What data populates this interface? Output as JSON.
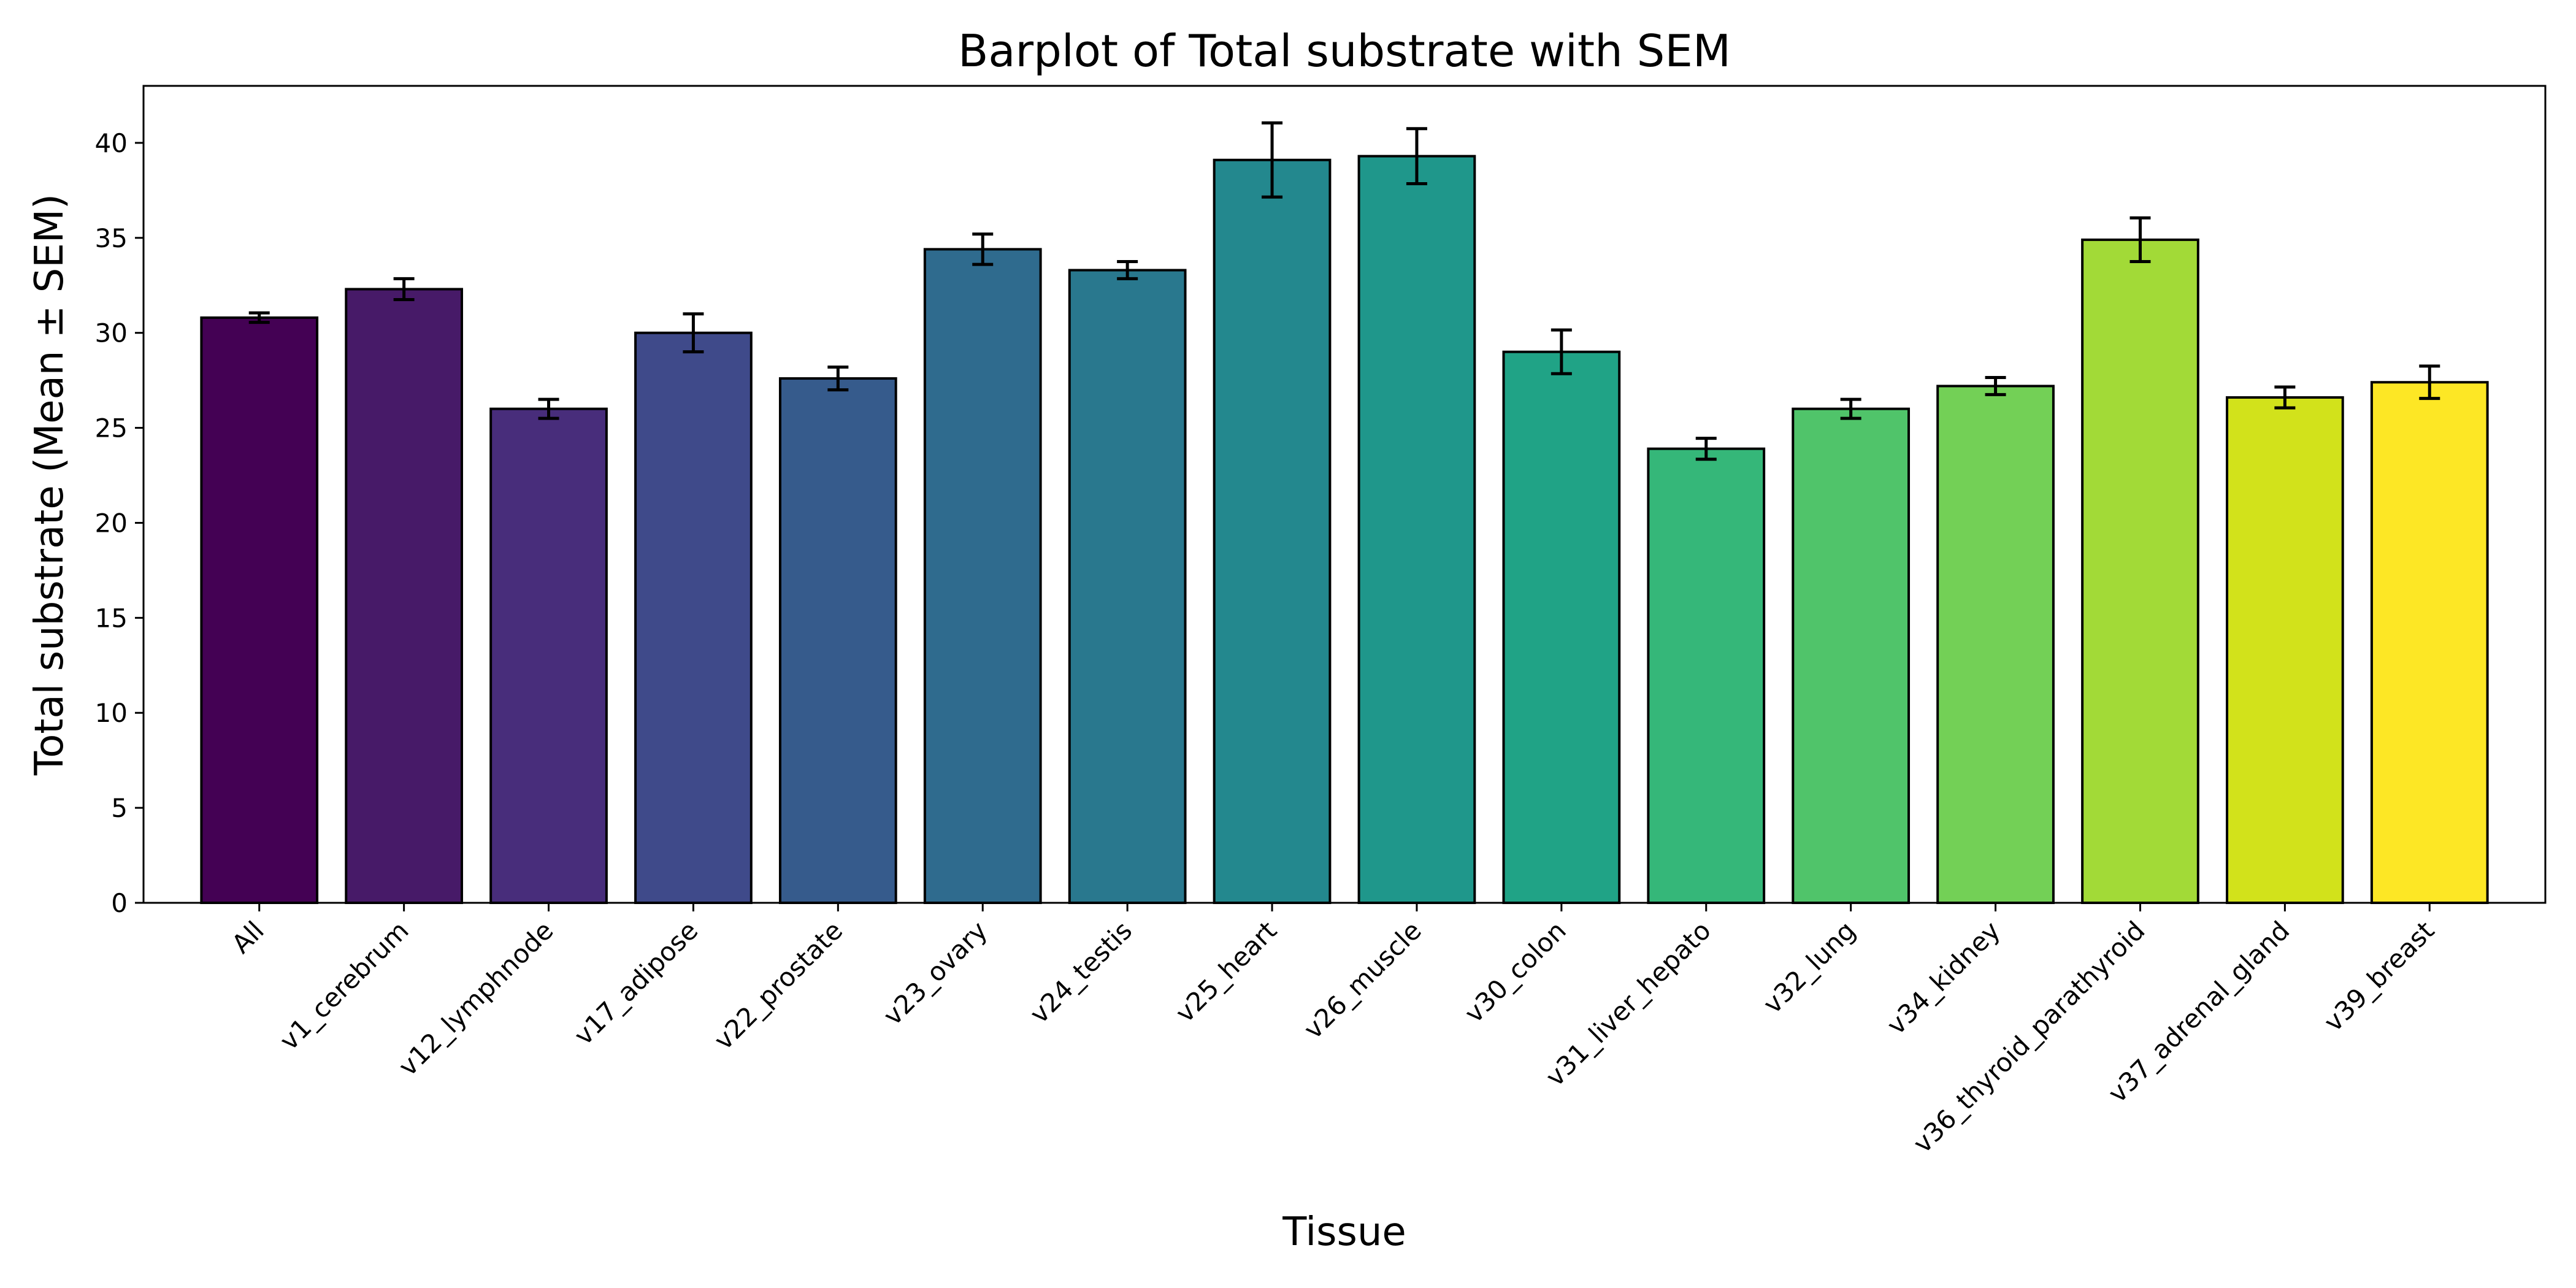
{
  "chart_data": {
    "type": "bar",
    "title": "Barplot of Total substrate with SEM",
    "xlabel": "Tissue",
    "ylabel": "Total substrate (Mean ± SEM)",
    "ylim": [
      0,
      43
    ],
    "yticks": [
      0,
      5,
      10,
      15,
      20,
      25,
      30,
      35,
      40
    ],
    "grid": false,
    "categories": [
      "All",
      "v1_cerebrum",
      "v12_lymphnode",
      "v17_adipose",
      "v22_prostate",
      "v23_ovary",
      "v24_testis",
      "v25_heart",
      "v26_muscle",
      "v30_colon",
      "v31_liver_hepato",
      "v32_lung",
      "v34_kidney",
      "v36_thyroid_parathyroid",
      "v37_adrenal_gland",
      "v39_breast"
    ],
    "values": [
      30.8,
      32.3,
      26.0,
      30.0,
      27.6,
      34.4,
      33.3,
      39.1,
      39.3,
      29.0,
      23.9,
      26.0,
      27.2,
      34.9,
      26.6,
      27.4
    ],
    "errors": [
      0.25,
      0.55,
      0.5,
      1.0,
      0.6,
      0.8,
      0.45,
      1.95,
      1.45,
      1.15,
      0.55,
      0.5,
      0.45,
      1.15,
      0.55,
      0.85
    ],
    "colors": [
      "#440154",
      "#471a68",
      "#482d7b",
      "#3f4a8a",
      "#365b8c",
      "#2f6b8e",
      "#29788e",
      "#23888e",
      "#1f978b",
      "#20a386",
      "#35b779",
      "#50c46a",
      "#73d056",
      "#a2da37",
      "#d2e21b",
      "#fde725"
    ]
  }
}
